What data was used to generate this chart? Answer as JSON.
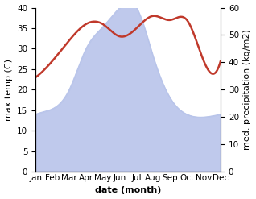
{
  "months": [
    "Jan",
    "Feb",
    "Mar",
    "Apr",
    "May",
    "Jun",
    "Jul",
    "Aug",
    "Sep",
    "Oct",
    "Nov",
    "Dec"
  ],
  "temperature": [
    23,
    27,
    32,
    36,
    36,
    33,
    35,
    38,
    37,
    37,
    27,
    27
  ],
  "precipitation": [
    21,
    23,
    30,
    45,
    53,
    60,
    60,
    42,
    27,
    21,
    20,
    21
  ],
  "temp_color": "#c0392b",
  "precip_color": "#b8c4ea",
  "ylim_left": [
    0,
    40
  ],
  "ylim_right": [
    0,
    60
  ],
  "xlabel": "date (month)",
  "ylabel_left": "max temp (C)",
  "ylabel_right": "med. precipitation (kg/m2)",
  "label_fontsize": 8,
  "tick_fontsize": 7.5
}
